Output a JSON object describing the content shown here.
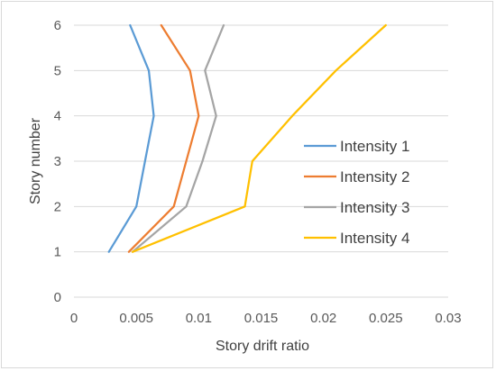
{
  "chart_data": {
    "type": "line",
    "title": "",
    "xlabel": "Story drift ratio",
    "ylabel": "Story number",
    "xlim": [
      0,
      0.03
    ],
    "ylim": [
      0,
      6
    ],
    "xticks": [
      "0",
      "0.005",
      "0.01",
      "0.015",
      "0.02",
      "0.025",
      "0.03"
    ],
    "yticks": [
      "0",
      "1",
      "2",
      "3",
      "4",
      "5",
      "6"
    ],
    "grid": "horizontal",
    "legend_position": "right",
    "series": [
      {
        "name": "Intensity 1",
        "color": "#5b9bd5",
        "points": [
          [
            0.0028,
            1
          ],
          [
            0.005,
            2
          ],
          [
            0.0057,
            3
          ],
          [
            0.0064,
            4
          ],
          [
            0.006,
            5
          ],
          [
            0.0045,
            6
          ]
        ]
      },
      {
        "name": "Intensity 2",
        "color": "#ed7d31",
        "points": [
          [
            0.0044,
            1
          ],
          [
            0.008,
            2
          ],
          [
            0.009,
            3
          ],
          [
            0.01,
            4
          ],
          [
            0.0093,
            5
          ],
          [
            0.007,
            6
          ]
        ]
      },
      {
        "name": "Intensity 3",
        "color": "#a5a5a5",
        "points": [
          [
            0.0047,
            1
          ],
          [
            0.009,
            2
          ],
          [
            0.0103,
            3
          ],
          [
            0.0114,
            4
          ],
          [
            0.0105,
            5
          ],
          [
            0.012,
            6
          ]
        ]
      },
      {
        "name": "Intensity 4",
        "color": "#ffc000",
        "points": [
          [
            0.0047,
            1
          ],
          [
            0.0137,
            2
          ],
          [
            0.0143,
            3
          ],
          [
            0.0175,
            4
          ],
          [
            0.021,
            5
          ],
          [
            0.025,
            6
          ]
        ]
      }
    ]
  }
}
